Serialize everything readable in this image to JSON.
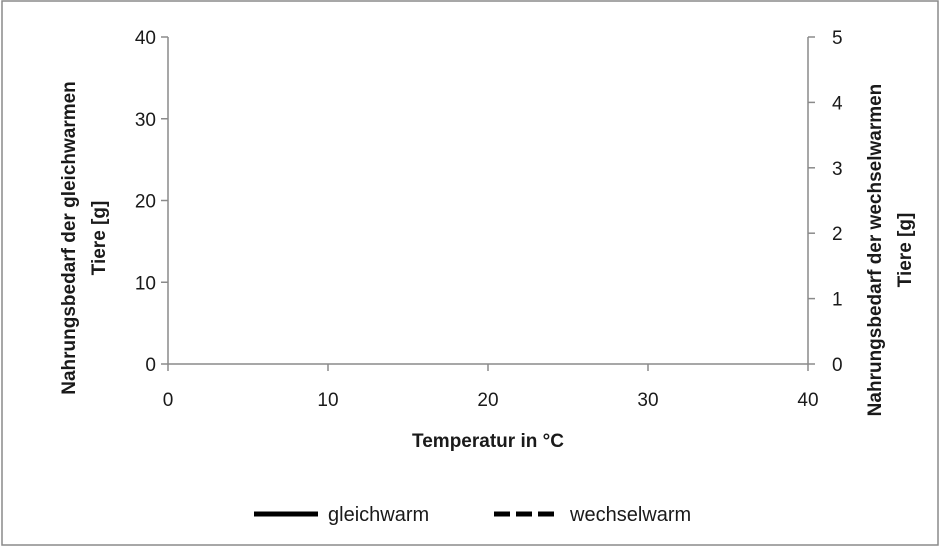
{
  "chart_data": {
    "type": "line",
    "title": "",
    "xlabel": "Temperatur in °C",
    "ylabel_left_lines": [
      "Nahrungsbedarf  der gleichwarmen",
      "Tiere [g]"
    ],
    "ylabel_right_lines": [
      "Nahrungsbedarf  der wechselwarmen",
      "Tiere [g]"
    ],
    "xlim": [
      0,
      40
    ],
    "ylim_left": [
      0,
      40
    ],
    "ylim_right": [
      0,
      5
    ],
    "x_ticks": [
      0,
      10,
      20,
      30,
      40
    ],
    "y_left_ticks": [
      0,
      10,
      20,
      30,
      40
    ],
    "y_right_ticks": [
      0,
      1,
      2,
      3,
      4,
      5
    ],
    "grid": false,
    "legend_position": "bottom",
    "series": [
      {
        "name": "gleichwarm",
        "axis": "left",
        "line_style": "solid",
        "color": "#000000",
        "x": [],
        "y": []
      },
      {
        "name": "wechselwarm",
        "axis": "right",
        "line_style": "dashed",
        "color": "#000000",
        "x": [],
        "y": []
      }
    ]
  }
}
